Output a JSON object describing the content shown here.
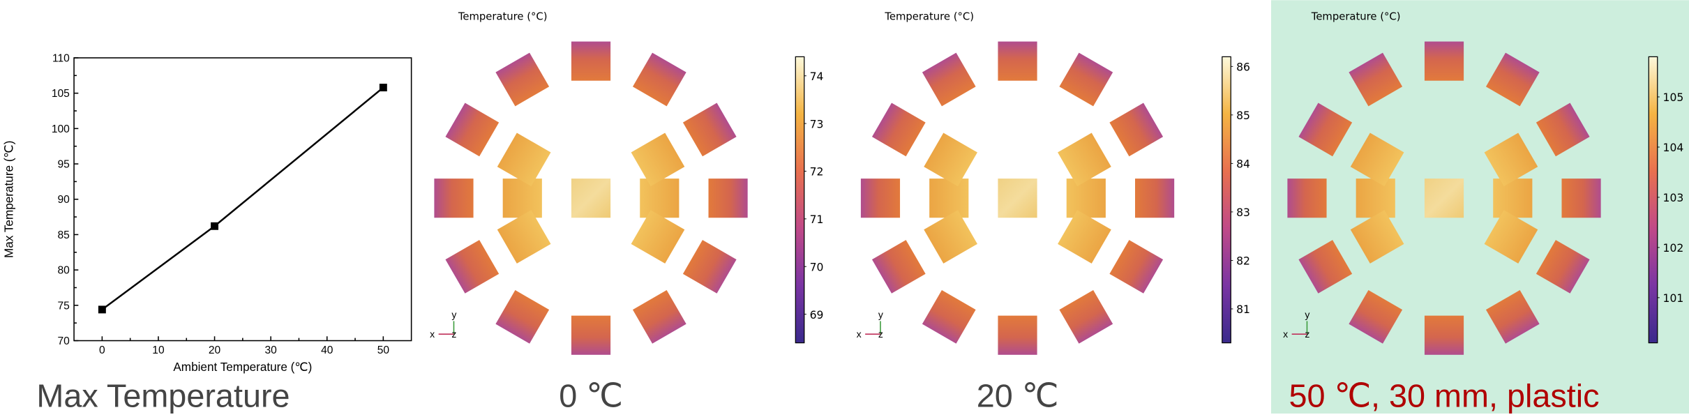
{
  "chart_data": {
    "type": "line",
    "title": "",
    "xlabel": "Ambient Temperature (℃)",
    "ylabel": "Max Temperature (℃)",
    "x": [
      0,
      20,
      50
    ],
    "series": [
      {
        "name": "Max Temperature",
        "values": [
          74.4,
          86.2,
          105.8
        ]
      }
    ],
    "xlim": [
      -5,
      55
    ],
    "ylim": [
      70,
      110
    ],
    "xticks": [
      0,
      10,
      20,
      30,
      40,
      50
    ],
    "yticks": [
      70,
      75,
      80,
      85,
      90,
      95,
      100,
      105,
      110
    ],
    "grid": false,
    "marker": "square",
    "caption": "Max Temperature"
  },
  "panels": [
    {
      "title": "Temperature (°C)",
      "caption": "0 ℃",
      "colorbar": {
        "min": 68.4,
        "max": 74.4,
        "ticks": [
          69,
          70,
          71,
          72,
          73,
          74
        ]
      }
    },
    {
      "title": "Temperature (°C)",
      "caption": "20 ℃",
      "colorbar": {
        "min": 80.3,
        "max": 86.2,
        "ticks": [
          81,
          82,
          83,
          84,
          85,
          86
        ]
      }
    },
    {
      "title": "Temperature (°C)",
      "caption": "50 ℃, 30 mm, plastic",
      "colorbar": {
        "min": 100.1,
        "max": 105.8,
        "ticks": [
          101,
          102,
          103,
          104,
          105
        ]
      },
      "highlight_bg": "#cdeedd",
      "caption_color": "#b00000"
    }
  ],
  "axis_triad": {
    "x": "x",
    "y": "y",
    "z": "z"
  },
  "colors": {
    "caption": "#444444",
    "highlight_caption": "#b00000",
    "highlight_bg": "#cdeedd"
  }
}
